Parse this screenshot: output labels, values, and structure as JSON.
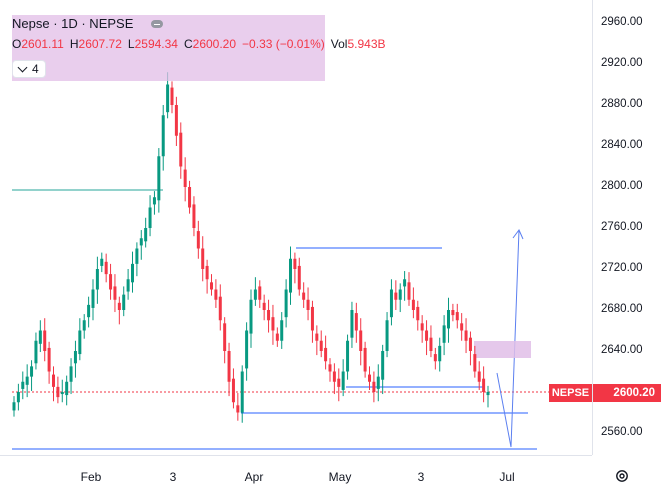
{
  "legend": {
    "symbol_title": "Nepse · 1D · NEPSE",
    "open_label": "O",
    "open": "2601.11",
    "high_label": "H",
    "high": "2607.72",
    "low_label": "L",
    "low": "2594.34",
    "close_label": "C",
    "close": "2600.20",
    "change": "−0.33 (−0.01%)",
    "vol_label": "Vol",
    "vol": "5.943B",
    "indicators_count": "4"
  },
  "price_scale": {
    "ticks": [
      "2960.00",
      "2920.00",
      "2880.00",
      "2840.00",
      "2800.00",
      "2760.00",
      "2720.00",
      "2680.00",
      "2640.00",
      "2560.00"
    ],
    "current_price": "2600.20",
    "symbol_badge": "NEPSE"
  },
  "time_scale": {
    "labels": [
      "Feb",
      "3",
      "Apr",
      "May",
      "3",
      "Jul"
    ]
  },
  "colors": {
    "up": "#089981",
    "down": "#f23645",
    "drawing": "#2962ff",
    "highlight": "#e1bee7"
  },
  "icons": {
    "settings": "gear-icon",
    "collapse": "minus-icon",
    "chevron": "chevron-down-icon"
  },
  "chart_data": {
    "type": "candlestick",
    "symbol": "NEPSE",
    "timeframe": "1D",
    "ylim": [
      2550,
      2970
    ],
    "y_ticks": [
      2560,
      2640,
      2680,
      2720,
      2760,
      2800,
      2840,
      2880,
      2920,
      2960
    ],
    "x_ticks": [
      "Feb",
      "3",
      "Apr",
      "May",
      "3",
      "Jul"
    ],
    "last_ohlc": {
      "open": 2601.11,
      "high": 2607.72,
      "low": 2594.34,
      "close": 2600.2
    },
    "candles_close": [
      2590,
      2600,
      2610,
      2615,
      2625,
      2650,
      2660,
      2640,
      2620,
      2605,
      2595,
      2600,
      2610,
      2625,
      2640,
      2660,
      2670,
      2685,
      2700,
      2720,
      2730,
      2715,
      2700,
      2690,
      2680,
      2695,
      2710,
      2725,
      2740,
      2750,
      2760,
      2780,
      2790,
      2830,
      2870,
      2900,
      2880,
      2850,
      2820,
      2800,
      2780,
      2760,
      2740,
      2720,
      2710,
      2700,
      2690,
      2670,
      2640,
      2610,
      2590,
      2580,
      2620,
      2660,
      2690,
      2700,
      2690,
      2680,
      2670,
      2660,
      2650,
      2670,
      2700,
      2730,
      2720,
      2700,
      2690,
      2680,
      2660,
      2650,
      2640,
      2630,
      2620,
      2610,
      2605,
      2620,
      2650,
      2680,
      2660,
      2640,
      2620,
      2610,
      2600,
      2615,
      2640,
      2670,
      2700,
      2690,
      2700,
      2710,
      2690,
      2680,
      2670,
      2660,
      2650,
      2640,
      2630,
      2645,
      2665,
      2680,
      2675,
      2670,
      2660,
      2650,
      2640,
      2620,
      2610,
      2600,
      2600
    ]
  }
}
